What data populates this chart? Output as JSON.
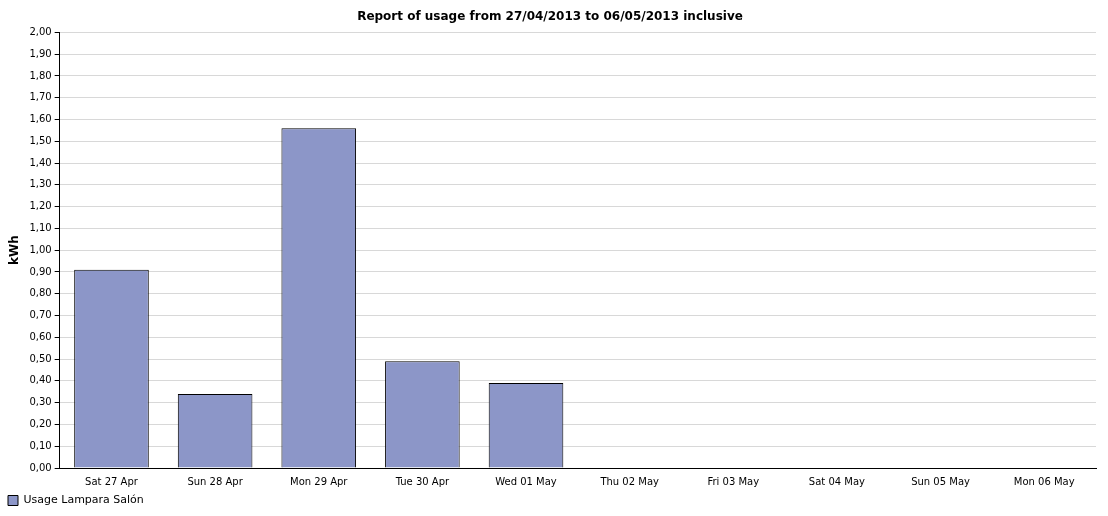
{
  "chart_data": {
    "type": "bar",
    "title": "Report of usage from 27/04/2013 to 06/05/2013 inclusive",
    "ylabel": "kWh",
    "categories": [
      "Sat 27 Apr",
      "Sun 28 Apr",
      "Mon 29 Apr",
      "Tue 30 Apr",
      "Wed 01 May",
      "Thu 02 May",
      "Fri 03 May",
      "Sat 04 May",
      "Sun 05 May",
      "Mon 06 May"
    ],
    "series": [
      {
        "name": "Usage Lampara Salón",
        "color": "#8c96c8",
        "values": [
          0.91,
          0.34,
          1.56,
          0.49,
          0.39,
          0,
          0,
          0,
          0,
          0
        ]
      }
    ],
    "ylim": [
      0,
      2
    ],
    "yticks": [
      {
        "value": 0,
        "label": "0,00"
      },
      {
        "value": 0.1,
        "label": "0,10"
      },
      {
        "value": 0.2,
        "label": "0,20"
      },
      {
        "value": 0.3,
        "label": "0,30"
      },
      {
        "value": 0.4,
        "label": "0,40"
      },
      {
        "value": 0.5,
        "label": "0,50"
      },
      {
        "value": 0.6,
        "label": "0,60"
      },
      {
        "value": 0.7,
        "label": "0,70"
      },
      {
        "value": 0.8,
        "label": "0,80"
      },
      {
        "value": 0.9,
        "label": "0,90"
      },
      {
        "value": 1,
        "label": "1,00"
      },
      {
        "value": 1.1,
        "label": "1,10"
      },
      {
        "value": 1.2,
        "label": "1,20"
      },
      {
        "value": 1.3,
        "label": "1,30"
      },
      {
        "value": 1.4,
        "label": "1,40"
      },
      {
        "value": 1.5,
        "label": "1,50"
      },
      {
        "value": 1.6,
        "label": "1,60"
      },
      {
        "value": 1.7,
        "label": "1,70"
      },
      {
        "value": 1.8,
        "label": "1,80"
      },
      {
        "value": 1.9,
        "label": "1,90"
      },
      {
        "value": 2,
        "label": "2,00"
      }
    ],
    "grid": "y",
    "legend": "bottom left"
  }
}
